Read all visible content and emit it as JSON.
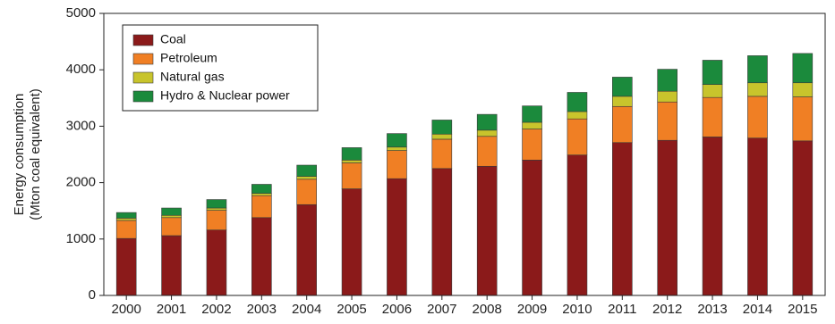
{
  "chart_data": {
    "type": "bar",
    "stacked": true,
    "title": "",
    "xlabel": "",
    "ylabel": "Energy consumption",
    "ylabel_line2": "(Mton coal equivalent)",
    "ylim": [
      0,
      5000
    ],
    "yticks": [
      0,
      1000,
      2000,
      3000,
      4000,
      5000
    ],
    "grid": false,
    "legend_position": "top-left",
    "categories": [
      "2000",
      "2001",
      "2002",
      "2003",
      "2004",
      "2005",
      "2006",
      "2007",
      "2008",
      "2009",
      "2010",
      "2011",
      "2012",
      "2013",
      "2014",
      "2015"
    ],
    "series": [
      {
        "name": "Coal",
        "color": "#8b1a1a",
        "values": [
          1010,
          1060,
          1160,
          1380,
          1610,
          1890,
          2070,
          2250,
          2290,
          2400,
          2490,
          2710,
          2750,
          2810,
          2790,
          2740
        ]
      },
      {
        "name": "Petroleum",
        "color": "#f07f24",
        "values": [
          320,
          320,
          350,
          390,
          450,
          460,
          500,
          520,
          530,
          550,
          640,
          640,
          680,
          700,
          740,
          780
        ]
      },
      {
        "name": "Natural gas",
        "color": "#c8c42c",
        "values": [
          40,
          40,
          40,
          40,
          50,
          50,
          60,
          90,
          110,
          120,
          130,
          180,
          190,
          230,
          240,
          250
        ]
      },
      {
        "name": "Hydro & Nuclear power",
        "color": "#1b8a3c",
        "values": [
          100,
          130,
          150,
          160,
          200,
          220,
          240,
          250,
          280,
          290,
          340,
          340,
          390,
          430,
          480,
          520
        ]
      }
    ]
  }
}
